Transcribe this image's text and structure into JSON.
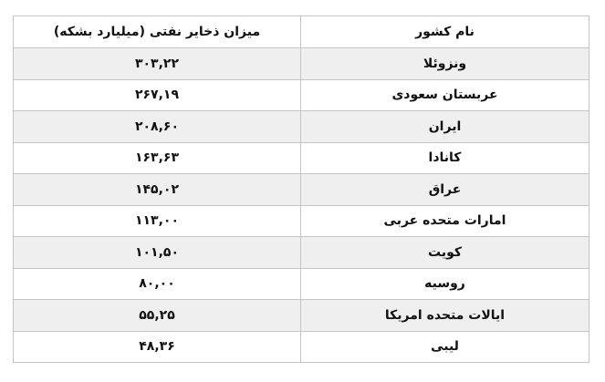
{
  "table": {
    "headers": [
      "نام کشور",
      "میزان ذخایر نفتی (میلیارد بشکه)"
    ],
    "rows": [
      {
        "country": "ونزوئلا",
        "reserves": "۳۰۳,۲۲"
      },
      {
        "country": "عربستان سعودی",
        "reserves": "۲۶۷,۱۹"
      },
      {
        "country": "ایران",
        "reserves": "۲۰۸,۶۰"
      },
      {
        "country": "کانادا",
        "reserves": "۱۶۳,۶۳"
      },
      {
        "country": "عراق",
        "reserves": "۱۴۵,۰۲"
      },
      {
        "country": "امارات متحده عربی",
        "reserves": "۱۱۳,۰۰"
      },
      {
        "country": "کویت",
        "reserves": "۱۰۱,۵۰"
      },
      {
        "country": "روسیه",
        "reserves": "۸۰,۰۰"
      },
      {
        "country": "ایالات متحده امریکا",
        "reserves": "۵۵,۲۵"
      },
      {
        "country": "لیبی",
        "reserves": "۴۸,۳۶"
      }
    ]
  }
}
